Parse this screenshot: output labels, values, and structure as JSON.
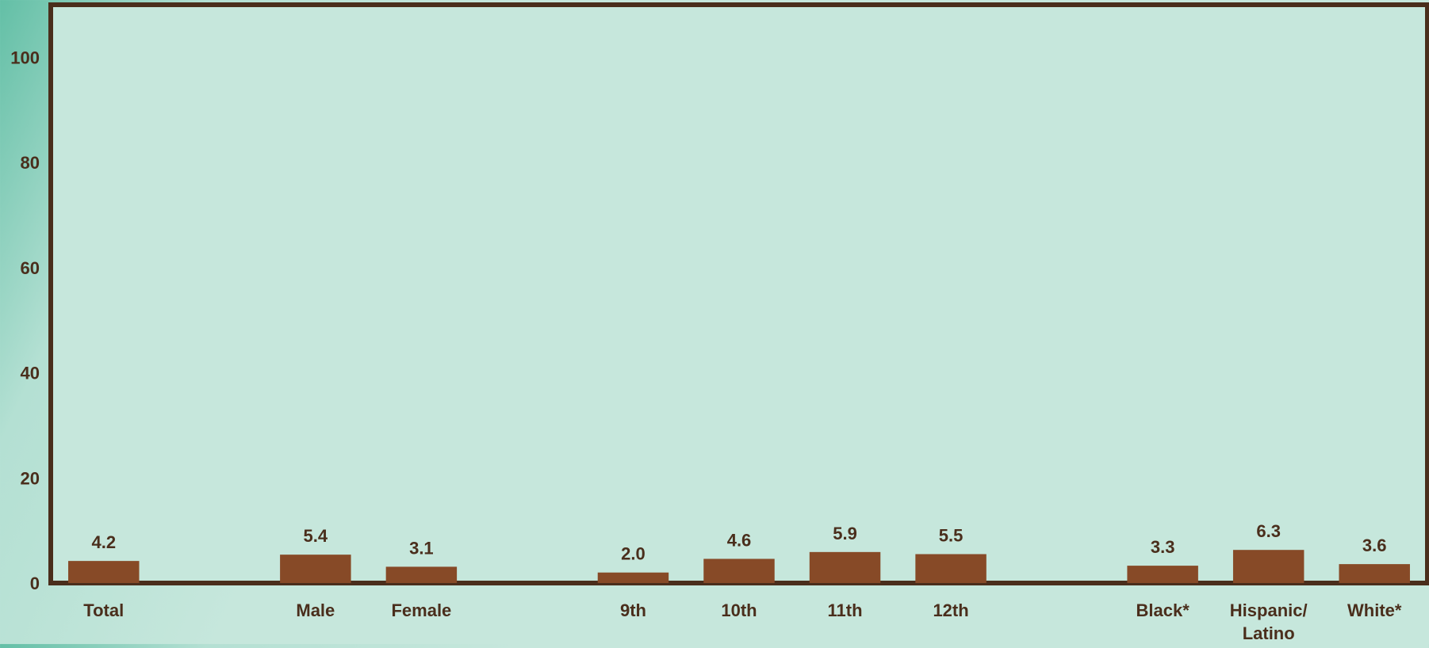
{
  "chart_data": {
    "type": "bar",
    "categories": [
      "Total",
      "",
      "Male",
      "Female",
      "",
      "9th",
      "10th",
      "11th",
      "12th",
      "",
      "Black*",
      "Hispanic/ Latino",
      "White*"
    ],
    "category_lines": [
      [
        "Total"
      ],
      [],
      [
        "Male"
      ],
      [
        "Female"
      ],
      [],
      [
        "9th"
      ],
      [
        "10th"
      ],
      [
        "11th"
      ],
      [
        "12th"
      ],
      [],
      [
        "Black*"
      ],
      [
        "Hispanic/",
        "Latino"
      ],
      [
        "White*"
      ]
    ],
    "values": [
      4.2,
      null,
      5.4,
      3.1,
      null,
      2.0,
      4.6,
      5.9,
      5.5,
      null,
      3.3,
      6.3,
      3.6
    ],
    "value_labels": [
      "4.2",
      "",
      "5.4",
      "3.1",
      "",
      "2.0",
      "4.6",
      "5.9",
      "5.5",
      "",
      "3.3",
      "6.3",
      "3.6"
    ],
    "y_ticks": [
      0,
      20,
      40,
      60,
      80,
      100
    ],
    "ylim": [
      0,
      110
    ],
    "grid": false,
    "legend": "none",
    "title": "",
    "xlabel": "",
    "ylabel": ""
  },
  "colors": {
    "bar": "#874a27",
    "axis": "#4a2e1c",
    "plot_background": "#c6e7dc",
    "text": "#4a2e1c"
  }
}
